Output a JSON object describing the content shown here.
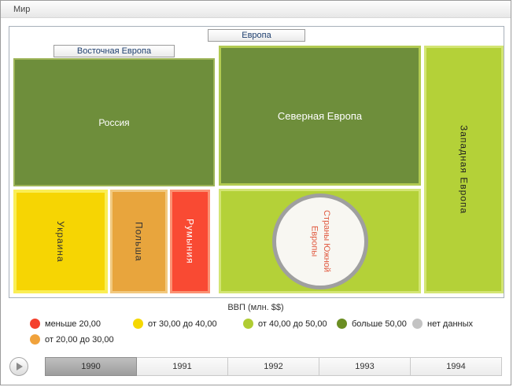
{
  "window": {
    "title": "Мир"
  },
  "treemap": {
    "region_label": "Европа",
    "groups": {
      "eastern": {
        "label": "Восточная Европа"
      },
      "southern": {
        "label": "Страны Южной Европы",
        "color": "#b4d138",
        "border": "#d3e574",
        "circle_fill": "#f8f7f2",
        "circle_border": "#9f9f9f",
        "text_color": "#e0593f"
      },
      "western": {
        "label": "Западная Европа",
        "color": "#b4d138",
        "border": "#d3e574",
        "text_color": "#222222"
      }
    },
    "nodes": {
      "russia": {
        "label": "Россия",
        "color": "#6e8e3b",
        "border": "#9db457",
        "text_color": "#ffffff"
      },
      "northern": {
        "label": "Северная Европа",
        "color": "#6e8e3b",
        "border": "#b2ca52",
        "text_color": "#ffffff"
      },
      "ukraine": {
        "label": "Украина",
        "color": "#f6d503",
        "border": "#faee55",
        "text_color": "#333333"
      },
      "poland": {
        "label": "Польша",
        "color": "#e8a53d",
        "border": "#f2c97f",
        "text_color": "#333333"
      },
      "romania": {
        "label": "Румыния",
        "color": "#f94a33",
        "border": "#fb9273",
        "text_color": "#ffffff"
      }
    }
  },
  "legend": {
    "title": "ВВП (млн. $$)",
    "items": [
      {
        "color": "#f4402c",
        "label": "меньше 20,00"
      },
      {
        "color": "#f0a23c",
        "label": "от 20,00 до 30,00"
      },
      {
        "color": "#f5d800",
        "label": "от 30,00 до 40,00"
      },
      {
        "color": "#b0cc33",
        "label": "от 40,00 до 50,00"
      },
      {
        "color": "#6b8e23",
        "label": "больше 50,00"
      },
      {
        "color": "#c3c3c3",
        "label": "нет данных"
      }
    ]
  },
  "timeline": {
    "years": [
      "1990",
      "1991",
      "1992",
      "1993",
      "1994"
    ],
    "active_year": "1990"
  },
  "chart_data": {
    "type": "treemap",
    "title": "Мир",
    "region": "Европа",
    "legend_title": "ВВП (млн. $$)",
    "year": "1990",
    "groups": [
      {
        "name": "Восточная Европа",
        "children": [
          {
            "name": "Россия",
            "color_class": "больше 50,00"
          },
          {
            "name": "Украина",
            "color_class": "от 30,00 до 40,00"
          },
          {
            "name": "Польша",
            "color_class": "от 20,00 до 30,00"
          },
          {
            "name": "Румыния",
            "color_class": "меньше 20,00"
          }
        ]
      },
      {
        "name": "Северная Европа",
        "color_class": "больше 50,00"
      },
      {
        "name": "Страны Южной Европы",
        "color_class": "от 40,00 до 50,00",
        "marker": "нет данных"
      },
      {
        "name": "Западная Европа",
        "color_class": "от 40,00 до 50,00"
      }
    ]
  }
}
